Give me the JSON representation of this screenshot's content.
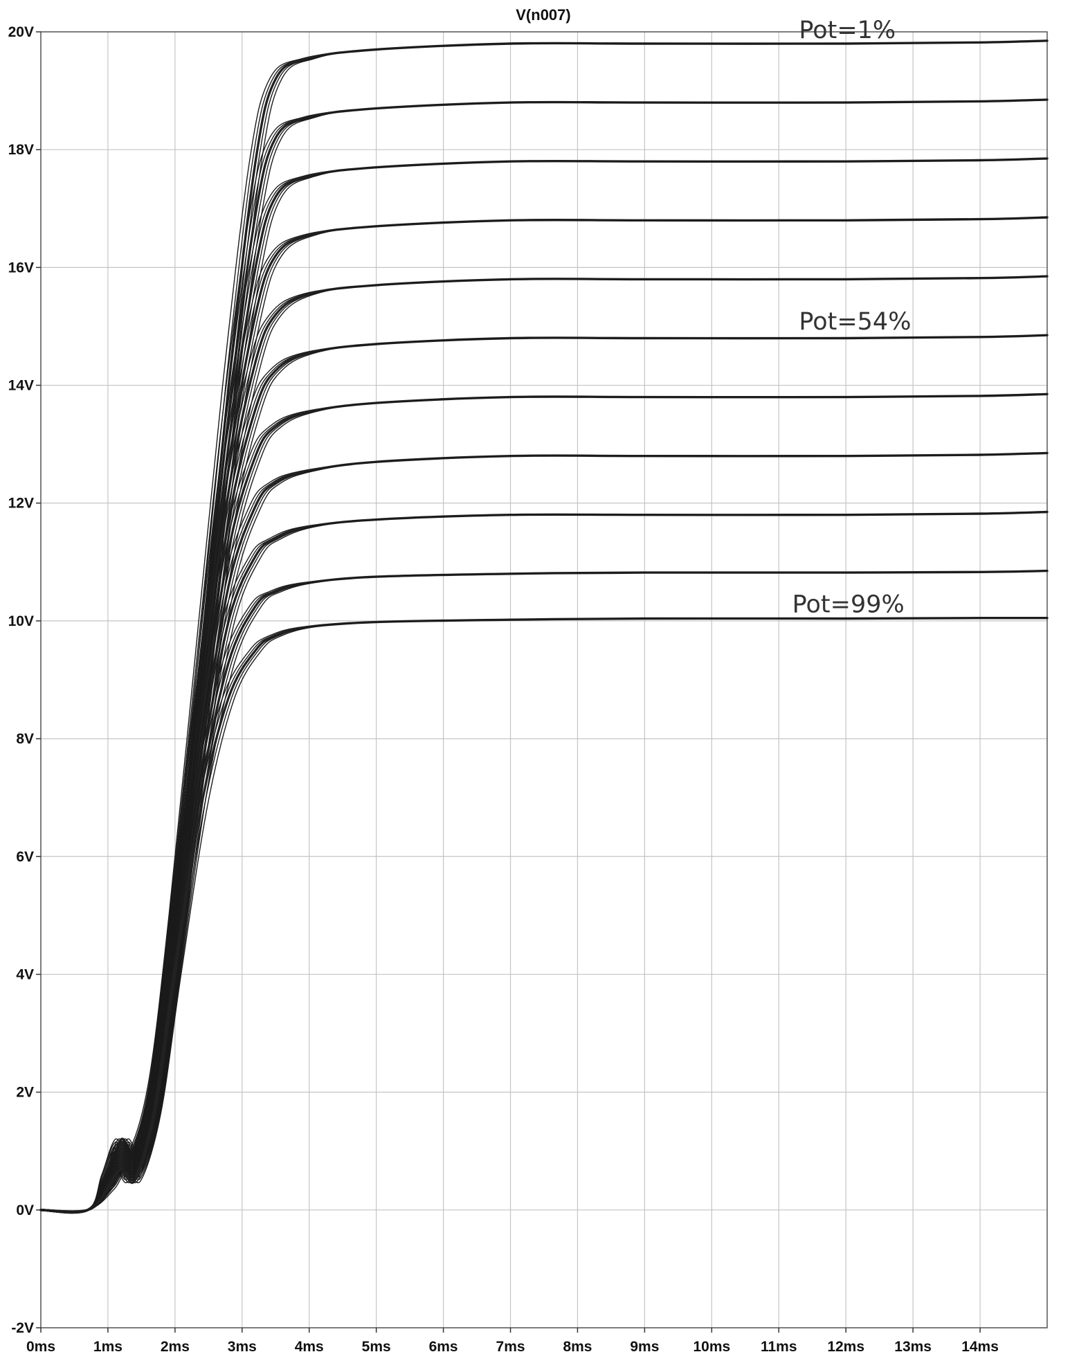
{
  "chart_data": {
    "type": "line",
    "title": "V(n007)",
    "xlabel": "",
    "ylabel": "",
    "xlim": [
      0,
      15
    ],
    "ylim": [
      -2,
      20
    ],
    "x_unit": "ms",
    "y_unit": "V",
    "grid": true,
    "x_ticks": [
      "0ms",
      "1ms",
      "2ms",
      "3ms",
      "4ms",
      "5ms",
      "6ms",
      "7ms",
      "8ms",
      "9ms",
      "10ms",
      "11ms",
      "12ms",
      "13ms",
      "14ms"
    ],
    "y_ticks": [
      "20V",
      "18V",
      "16V",
      "14V",
      "12V",
      "10V",
      "8V",
      "6V",
      "4V",
      "2V",
      "0V",
      "-2V"
    ],
    "y_tick_values": [
      20,
      18,
      16,
      14,
      12,
      10,
      8,
      6,
      4,
      2,
      0,
      -2
    ],
    "annotations": [
      {
        "text": "Pot=1%",
        "x": 11.3,
        "y": 19.8
      },
      {
        "text": "Pot=54%",
        "x": 11.3,
        "y": 14.85
      },
      {
        "text": "Pot=99%",
        "x": 11.2,
        "y": 10.05
      }
    ],
    "series": [
      {
        "final_value": 19.85,
        "x": [
          0,
          0.7,
          1.0,
          1.2,
          1.4,
          1.7,
          2.0,
          2.4,
          2.8,
          3.2,
          3.5,
          4.0,
          5.0,
          7.0,
          9.0,
          12.0,
          14.0,
          15.0
        ],
        "values": [
          0,
          0,
          0.6,
          1.2,
          1.0,
          2.2,
          5.0,
          9.5,
          14.0,
          17.8,
          19.2,
          19.55,
          19.7,
          19.8,
          19.8,
          19.8,
          19.82,
          19.85
        ]
      },
      {
        "final_value": 18.85,
        "x": [
          0,
          0.7,
          1.0,
          1.2,
          1.4,
          1.7,
          2.0,
          2.4,
          2.8,
          3.2,
          3.5,
          4.0,
          5.0,
          7.0,
          9.0,
          12.0,
          14.0,
          15.0
        ],
        "values": [
          0,
          0,
          0.6,
          1.15,
          0.95,
          2.1,
          4.9,
          9.2,
          13.5,
          16.9,
          18.2,
          18.55,
          18.7,
          18.8,
          18.8,
          18.8,
          18.82,
          18.85
        ]
      },
      {
        "final_value": 17.85,
        "x": [
          0,
          0.7,
          1.0,
          1.2,
          1.4,
          1.7,
          2.0,
          2.4,
          2.8,
          3.2,
          3.5,
          4.0,
          5.0,
          7.0,
          9.0,
          12.0,
          14.0,
          15.0
        ],
        "values": [
          0,
          0,
          0.55,
          1.1,
          0.9,
          2.05,
          4.8,
          9.0,
          13.0,
          16.0,
          17.2,
          17.55,
          17.7,
          17.8,
          17.8,
          17.8,
          17.82,
          17.85
        ]
      },
      {
        "final_value": 16.85,
        "x": [
          0,
          0.7,
          1.0,
          1.2,
          1.4,
          1.7,
          2.0,
          2.4,
          2.8,
          3.2,
          3.5,
          4.0,
          5.0,
          7.0,
          9.0,
          12.0,
          14.0,
          15.0
        ],
        "values": [
          0,
          0,
          0.55,
          1.05,
          0.85,
          2.0,
          4.7,
          8.8,
          12.6,
          15.2,
          16.2,
          16.55,
          16.7,
          16.8,
          16.8,
          16.8,
          16.82,
          16.85
        ]
      },
      {
        "final_value": 15.85,
        "x": [
          0,
          0.7,
          1.0,
          1.2,
          1.4,
          1.7,
          2.0,
          2.4,
          2.8,
          3.2,
          3.5,
          4.0,
          5.0,
          7.0,
          9.0,
          12.0,
          14.0,
          15.0
        ],
        "values": [
          0,
          0,
          0.5,
          1.0,
          0.8,
          1.95,
          4.6,
          8.6,
          12.2,
          14.4,
          15.2,
          15.55,
          15.7,
          15.8,
          15.8,
          15.8,
          15.82,
          15.85
        ]
      },
      {
        "final_value": 14.85,
        "x": [
          0,
          0.7,
          1.0,
          1.2,
          1.4,
          1.7,
          2.0,
          2.4,
          2.8,
          3.2,
          3.5,
          4.0,
          5.0,
          7.0,
          9.0,
          12.0,
          14.0,
          15.0
        ],
        "values": [
          0,
          0,
          0.5,
          0.95,
          0.75,
          1.9,
          4.5,
          8.3,
          11.7,
          13.6,
          14.25,
          14.55,
          14.7,
          14.8,
          14.8,
          14.8,
          14.82,
          14.85
        ]
      },
      {
        "final_value": 13.85,
        "x": [
          0,
          0.7,
          1.0,
          1.2,
          1.4,
          1.7,
          2.0,
          2.4,
          2.8,
          3.2,
          3.5,
          4.0,
          5.0,
          7.0,
          9.0,
          12.0,
          14.0,
          15.0
        ],
        "values": [
          0,
          0,
          0.45,
          0.9,
          0.7,
          1.85,
          4.4,
          8.1,
          11.2,
          12.8,
          13.3,
          13.55,
          13.7,
          13.8,
          13.8,
          13.8,
          13.82,
          13.85
        ]
      },
      {
        "final_value": 12.85,
        "x": [
          0,
          0.7,
          1.0,
          1.2,
          1.4,
          1.7,
          2.0,
          2.4,
          2.8,
          3.2,
          3.5,
          4.0,
          5.0,
          7.0,
          9.0,
          12.0,
          14.0,
          15.0
        ],
        "values": [
          0,
          0,
          0.45,
          0.85,
          0.65,
          1.8,
          4.3,
          7.8,
          10.6,
          11.95,
          12.35,
          12.55,
          12.7,
          12.8,
          12.8,
          12.8,
          12.82,
          12.85
        ]
      },
      {
        "final_value": 11.85,
        "x": [
          0,
          0.7,
          1.0,
          1.2,
          1.4,
          1.7,
          2.0,
          2.4,
          2.8,
          3.2,
          3.5,
          4.0,
          5.0,
          7.0,
          9.0,
          12.0,
          14.0,
          15.0
        ],
        "values": [
          0,
          0,
          0.4,
          0.8,
          0.6,
          1.75,
          4.2,
          7.5,
          10.0,
          11.1,
          11.4,
          11.6,
          11.72,
          11.8,
          11.8,
          11.8,
          11.82,
          11.85
        ]
      },
      {
        "final_value": 10.85,
        "x": [
          0,
          0.7,
          1.0,
          1.2,
          1.4,
          1.7,
          2.0,
          2.4,
          2.8,
          3.2,
          3.5,
          4.0,
          5.0,
          7.0,
          9.0,
          12.0,
          14.0,
          15.0
        ],
        "values": [
          0,
          0,
          0.4,
          0.75,
          0.55,
          1.7,
          4.1,
          7.2,
          9.3,
          10.25,
          10.5,
          10.65,
          10.75,
          10.8,
          10.82,
          10.82,
          10.83,
          10.85
        ]
      },
      {
        "final_value": 10.05,
        "x": [
          0,
          0.7,
          1.0,
          1.2,
          1.4,
          1.7,
          2.0,
          2.4,
          2.8,
          3.2,
          3.5,
          4.0,
          5.0,
          7.0,
          9.0,
          12.0,
          14.0,
          15.0
        ],
        "values": [
          0,
          0,
          0.35,
          0.7,
          0.5,
          1.65,
          4.0,
          6.9,
          8.7,
          9.5,
          9.75,
          9.9,
          9.98,
          10.02,
          10.04,
          10.04,
          10.05,
          10.05
        ]
      }
    ]
  }
}
